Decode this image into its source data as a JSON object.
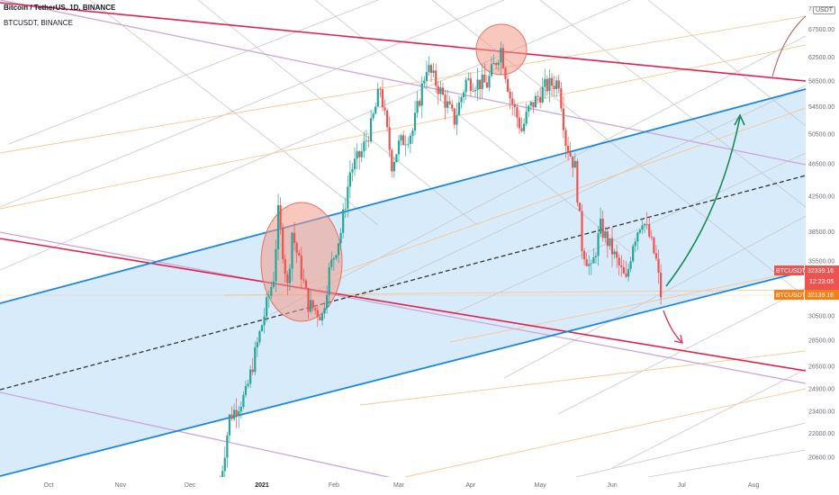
{
  "header": {
    "title": "Bitcoin / TetherUS, 1D, BINANCE",
    "subtitle": "BTCUSDT, BINANCE"
  },
  "currency_badge": "USDT",
  "price_labels": [
    {
      "name": "BTCUSDT",
      "value": "32339.16",
      "extra": "12:23:05",
      "color": "#ef5350"
    },
    {
      "name": "BTCUSDT",
      "value": "32139.16",
      "color": "#f57f17"
    }
  ],
  "colors": {
    "channel_fill": "#d4e9fb",
    "channel_line": "#1c86e0",
    "red_line": "#e0214c",
    "purple_line": "#cba6de",
    "orange_line": "#f7c894",
    "grey_line": "#c8c8c8",
    "candle_up": "#26a69a",
    "candle_down": "#ef5350",
    "circle_fill": "#f29b8b",
    "green_arrow": "#1a8a56",
    "red_arrow": "#e0214c"
  },
  "chart_data": {
    "type": "candlestick",
    "y_axis": {
      "scale": "log",
      "ticks": [
        "20600.00",
        "22000.00",
        "23400.00",
        "24900.00",
        "26500.00",
        "28500.00",
        "30500.00",
        "32500.00",
        "35500.00",
        "38500.00",
        "42500.00",
        "46500.00",
        "50500.00",
        "54500.00",
        "58500.00",
        "62500.00",
        "67500.00",
        "71500.00"
      ]
    },
    "x_axis": {
      "ticks": [
        "Oct",
        "Nov",
        "Dec",
        "2021",
        "Feb",
        "Mar",
        "Apr",
        "May",
        "Jun",
        "Jul",
        "Aug"
      ]
    },
    "last_price": 32339.16,
    "countdown": "12:23:05",
    "path_points": [
      [
        "2020-12-14",
        19200
      ],
      [
        "2020-12-18",
        23000
      ],
      [
        "2020-12-25",
        24500
      ],
      [
        "2020-12-31",
        29000
      ],
      [
        "2021-01-06",
        34000
      ],
      [
        "2021-01-08",
        40500
      ],
      [
        "2021-01-12",
        33000
      ],
      [
        "2021-01-14",
        38500
      ],
      [
        "2021-01-21",
        31500
      ],
      [
        "2021-01-27",
        30500
      ],
      [
        "2021-01-30",
        34500
      ],
      [
        "2021-02-04",
        38500
      ],
      [
        "2021-02-08",
        45500
      ],
      [
        "2021-02-13",
        48000
      ],
      [
        "2021-02-17",
        51500
      ],
      [
        "2021-02-21",
        57500
      ],
      [
        "2021-02-26",
        46500
      ],
      [
        "2021-03-01",
        49000
      ],
      [
        "2021-03-07",
        51000
      ],
      [
        "2021-03-13",
        61000
      ],
      [
        "2021-03-18",
        57500
      ],
      [
        "2021-03-25",
        52500
      ],
      [
        "2021-03-30",
        58500
      ],
      [
        "2021-04-08",
        58000
      ],
      [
        "2021-04-14",
        64000
      ],
      [
        "2021-04-18",
        56000
      ],
      [
        "2021-04-23",
        51000
      ],
      [
        "2021-04-26",
        54000
      ],
      [
        "2021-05-03",
        57500
      ],
      [
        "2021-05-09",
        58500
      ],
      [
        "2021-05-12",
        49500
      ],
      [
        "2021-05-16",
        46000
      ],
      [
        "2021-05-19",
        37000
      ],
      [
        "2021-05-23",
        34500
      ],
      [
        "2021-05-27",
        39000
      ],
      [
        "2021-06-01",
        36500
      ],
      [
        "2021-06-07",
        33500
      ],
      [
        "2021-06-10",
        37500
      ],
      [
        "2021-06-14",
        40000
      ],
      [
        "2021-06-17",
        38000
      ],
      [
        "2021-06-20",
        35500
      ],
      [
        "2021-06-22",
        32339
      ]
    ]
  }
}
